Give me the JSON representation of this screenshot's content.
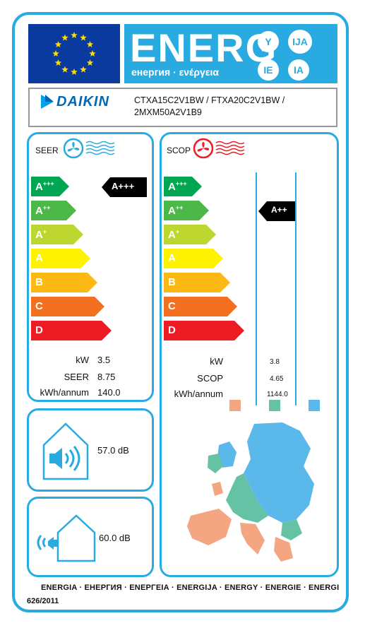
{
  "header": {
    "energy_word": "ENERG",
    "energy_subtitle": "енергия · ενέργεια",
    "language_codes": [
      "Y",
      "IJA",
      "IE",
      "IA"
    ]
  },
  "supplier": {
    "brand": "DAIKIN",
    "models_line1": "CTXA15C2V1BW / FTXA20C2V1BW /",
    "models_line2": "2MXM50A2V1B9"
  },
  "seer_panel": {
    "title": "SEER",
    "classes": [
      "A+++",
      "A++",
      "A+",
      "A",
      "B",
      "C",
      "D"
    ],
    "rating": "A+++",
    "rows": [
      {
        "label": "kW",
        "value": "3.5"
      },
      {
        "label": "SEER",
        "value": "8.75"
      },
      {
        "label": "kWh/annum",
        "value": "140.0"
      }
    ]
  },
  "scop_panel": {
    "title": "SCOP",
    "classes": [
      "A+++",
      "A++",
      "A+",
      "A",
      "B",
      "C",
      "D"
    ],
    "rating": "A++",
    "rows": [
      {
        "label": "kW",
        "value": "3.8"
      },
      {
        "label": "SCOP",
        "value": "4.65"
      },
      {
        "label": "kWh/annum",
        "value": "1144.0"
      }
    ],
    "zone_colors": [
      "#f4a582",
      "#66c2a5",
      "#5bb8ea"
    ]
  },
  "noise": {
    "indoor": "57.0 dB",
    "outdoor": "60.0 dB"
  },
  "class_colors": [
    "#00a651",
    "#4cb848",
    "#bed630",
    "#fff200",
    "#fdb913",
    "#f37021",
    "#ed1c24"
  ],
  "footer": {
    "languages": "ENERGIA · ЕНЕРГИЯ · ΕΝΕΡΓΕΙΑ · ENERGIJA · ENERGY · ENERGIE · ENERGI",
    "regulation": "626/2011"
  }
}
